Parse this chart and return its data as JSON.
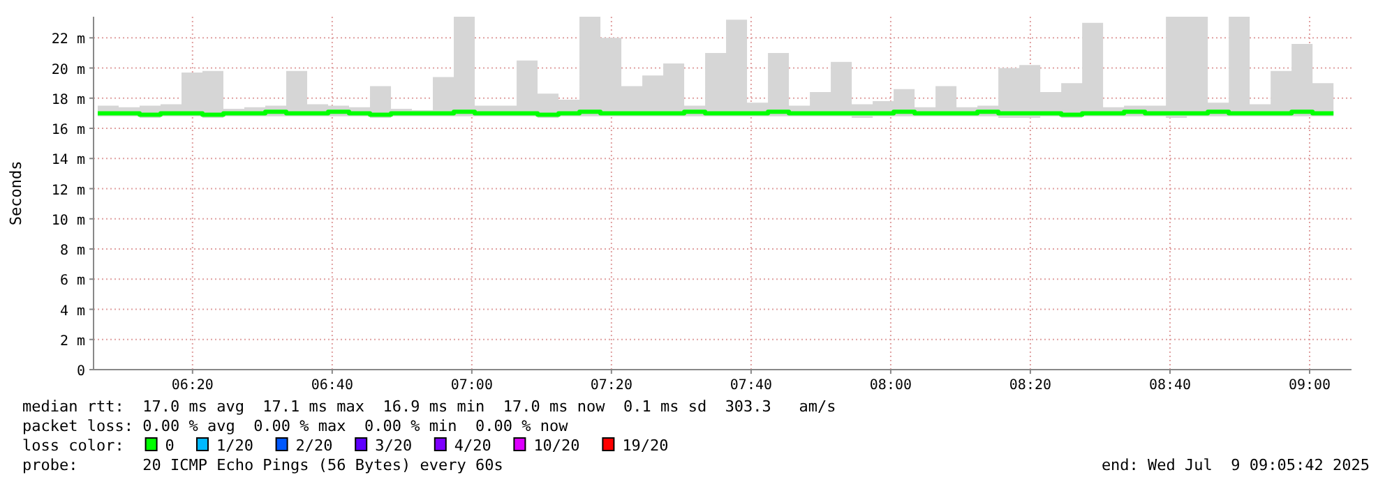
{
  "chart_data": {
    "type": "line",
    "ylabel": "Seconds",
    "legend_title": "loss color:",
    "legend": "bottom",
    "grid": true,
    "marker": "none",
    "line_style": "solid",
    "xlim": [
      6.097,
      9.1
    ],
    "ylim": [
      0,
      23.4
    ],
    "xticks": [
      {
        "value": 6.3333,
        "label": "06:20"
      },
      {
        "value": 6.6667,
        "label": "06:40"
      },
      {
        "value": 7,
        "label": "07:00"
      },
      {
        "value": 7.3333,
        "label": "07:20"
      },
      {
        "value": 7.6667,
        "label": "07:40"
      },
      {
        "value": 8,
        "label": "08:00"
      },
      {
        "value": 8.3333,
        "label": "08:20"
      },
      {
        "value": 8.6667,
        "label": "08:40"
      },
      {
        "value": 9,
        "label": "09:00"
      }
    ],
    "yticks": [
      0,
      {
        "value": 2,
        "label": "2 m"
      },
      {
        "value": 4,
        "label": "4 m"
      },
      {
        "value": 6,
        "label": "6 m"
      },
      {
        "value": 8,
        "label": "8 m"
      },
      {
        "value": 10,
        "label": "10 m"
      },
      {
        "value": 12,
        "label": "12 m"
      },
      {
        "value": 14,
        "label": "14 m"
      },
      {
        "value": 16,
        "label": "16 m"
      },
      {
        "value": 18,
        "label": "18 m"
      },
      {
        "value": 20,
        "label": "20 m"
      },
      {
        "value": 22,
        "label": "22 m"
      }
    ],
    "x": [
      6.107,
      6.157,
      6.207,
      6.257,
      6.307,
      6.357,
      6.407,
      6.457,
      6.507,
      6.557,
      6.607,
      6.657,
      6.707,
      6.757,
      6.807,
      6.857,
      6.907,
      6.957,
      7.007,
      7.057,
      7.107,
      7.157,
      7.207,
      7.257,
      7.307,
      7.357,
      7.407,
      7.457,
      7.507,
      7.557,
      7.607,
      7.657,
      7.707,
      7.757,
      7.807,
      7.857,
      7.907,
      7.957,
      8.007,
      8.057,
      8.107,
      8.157,
      8.207,
      8.257,
      8.307,
      8.357,
      8.407,
      8.457,
      8.507,
      8.557,
      8.607,
      8.657,
      8.707,
      8.757,
      8.807,
      8.857,
      8.907,
      8.957,
      9.007,
      9.057
    ],
    "series": [
      {
        "name": "0",
        "color": "#00ff00",
        "values": [
          17.0,
          17.0,
          16.9,
          17.0,
          17.0,
          16.9,
          17.0,
          17.0,
          17.1,
          17.0,
          17.0,
          17.1,
          17.0,
          16.9,
          17.0,
          17.0,
          17.0,
          17.1,
          17.0,
          17.0,
          17.0,
          16.9,
          17.0,
          17.1,
          17.0,
          17.0,
          17.0,
          17.0,
          17.1,
          17.0,
          17.0,
          17.0,
          17.1,
          17.0,
          17.0,
          17.0,
          17.0,
          17.0,
          17.1,
          17.0,
          17.0,
          17.0,
          17.1,
          17.0,
          17.0,
          17.0,
          16.9,
          17.0,
          17.0,
          17.1,
          17.0,
          17.0,
          17.0,
          17.1,
          17.0,
          17.0,
          17.0,
          17.1,
          17.0,
          17.0
        ],
        "lower": [
          16.8,
          16.8,
          16.7,
          16.8,
          16.8,
          16.7,
          16.8,
          16.8,
          16.8,
          16.8,
          16.8,
          16.8,
          16.8,
          16.7,
          16.8,
          16.8,
          16.8,
          16.8,
          16.8,
          16.8,
          16.8,
          16.7,
          16.8,
          16.8,
          16.8,
          16.8,
          16.8,
          16.8,
          16.8,
          16.8,
          16.8,
          16.8,
          16.8,
          16.8,
          16.8,
          16.8,
          16.7,
          16.8,
          16.8,
          16.8,
          16.8,
          16.8,
          16.8,
          16.7,
          16.7,
          16.8,
          16.7,
          16.8,
          16.8,
          16.8,
          16.8,
          16.7,
          16.8,
          16.8,
          16.8,
          16.8,
          16.8,
          16.8,
          16.8,
          16.8
        ],
        "upper": [
          17.5,
          17.4,
          17.5,
          17.6,
          19.7,
          19.8,
          17.3,
          17.4,
          17.5,
          19.8,
          17.6,
          17.5,
          17.4,
          18.8,
          17.3,
          17.2,
          19.4,
          23.4,
          17.5,
          17.5,
          20.5,
          18.3,
          17.9,
          23.4,
          22.0,
          18.8,
          19.5,
          20.3,
          17.5,
          21.0,
          23.2,
          17.7,
          21.0,
          17.5,
          18.4,
          20.4,
          17.6,
          17.8,
          18.6,
          17.4,
          18.8,
          17.4,
          17.5,
          20.0,
          20.2,
          18.4,
          19.0,
          23.0,
          17.4,
          17.5,
          17.5,
          23.4,
          23.4,
          17.7,
          23.4,
          17.6,
          19.8,
          21.6,
          19.0,
          17.5
        ]
      },
      {
        "name": "1/20",
        "color": "#00b8ff",
        "values": [
          null,
          null,
          null,
          null,
          null,
          null,
          null,
          null,
          null,
          null,
          null,
          null,
          null,
          null,
          null,
          null,
          null,
          null,
          null,
          null,
          null,
          null,
          null,
          null,
          null,
          null,
          null,
          null,
          null,
          null,
          null,
          null,
          null,
          null,
          null,
          null,
          null,
          null,
          null,
          null,
          null,
          null,
          null,
          null,
          null,
          null,
          null,
          null,
          null,
          null,
          null,
          null,
          null,
          null,
          null,
          null,
          null,
          null,
          null,
          null
        ]
      },
      {
        "name": "2/20",
        "color": "#0059ff",
        "values": [
          null,
          null,
          null,
          null,
          null,
          null,
          null,
          null,
          null,
          null,
          null,
          null,
          null,
          null,
          null,
          null,
          null,
          null,
          null,
          null,
          null,
          null,
          null,
          null,
          null,
          null,
          null,
          null,
          null,
          null,
          null,
          null,
          null,
          null,
          null,
          null,
          null,
          null,
          null,
          null,
          null,
          null,
          null,
          null,
          null,
          null,
          null,
          null,
          null,
          null,
          null,
          null,
          null,
          null,
          null,
          null,
          null,
          null,
          null,
          null
        ]
      },
      {
        "name": "3/20",
        "color": "#5e00ff",
        "values": [
          null,
          null,
          null,
          null,
          null,
          null,
          null,
          null,
          null,
          null,
          null,
          null,
          null,
          null,
          null,
          null,
          null,
          null,
          null,
          null,
          null,
          null,
          null,
          null,
          null,
          null,
          null,
          null,
          null,
          null,
          null,
          null,
          null,
          null,
          null,
          null,
          null,
          null,
          null,
          null,
          null,
          null,
          null,
          null,
          null,
          null,
          null,
          null,
          null,
          null,
          null,
          null,
          null,
          null,
          null,
          null,
          null,
          null,
          null,
          null
        ]
      },
      {
        "name": "4/20",
        "color": "#7e00ff",
        "values": [
          null,
          null,
          null,
          null,
          null,
          null,
          null,
          null,
          null,
          null,
          null,
          null,
          null,
          null,
          null,
          null,
          null,
          null,
          null,
          null,
          null,
          null,
          null,
          null,
          null,
          null,
          null,
          null,
          null,
          null,
          null,
          null,
          null,
          null,
          null,
          null,
          null,
          null,
          null,
          null,
          null,
          null,
          null,
          null,
          null,
          null,
          null,
          null,
          null,
          null,
          null,
          null,
          null,
          null,
          null,
          null,
          null,
          null,
          null,
          null
        ]
      },
      {
        "name": "10/20",
        "color": "#dd00ff",
        "values": [
          null,
          null,
          null,
          null,
          null,
          null,
          null,
          null,
          null,
          null,
          null,
          null,
          null,
          null,
          null,
          null,
          null,
          null,
          null,
          null,
          null,
          null,
          null,
          null,
          null,
          null,
          null,
          null,
          null,
          null,
          null,
          null,
          null,
          null,
          null,
          null,
          null,
          null,
          null,
          null,
          null,
          null,
          null,
          null,
          null,
          null,
          null,
          null,
          null,
          null,
          null,
          null,
          null,
          null,
          null,
          null,
          null,
          null,
          null,
          null
        ]
      },
      {
        "name": "19/20",
        "color": "#ff0000",
        "values": [
          null,
          null,
          null,
          null,
          null,
          null,
          null,
          null,
          null,
          null,
          null,
          null,
          null,
          null,
          null,
          null,
          null,
          null,
          null,
          null,
          null,
          null,
          null,
          null,
          null,
          null,
          null,
          null,
          null,
          null,
          null,
          null,
          null,
          null,
          null,
          null,
          null,
          null,
          null,
          null,
          null,
          null,
          null,
          null,
          null,
          null,
          null,
          null,
          null,
          null,
          null,
          null,
          null,
          null,
          null,
          null,
          null,
          null,
          null,
          null
        ]
      }
    ],
    "annotations": [
      "median rtt:  17.0 ms avg  17.1 ms max  16.9 ms min  17.0 ms now  0.1 ms sd  303.3   am/s",
      "packet loss: 0.00 % avg  0.00 % max  0.00 % min  0.00 % now",
      "probe:       20 ICMP Echo Pings (56 Bytes) every 60s",
      "end: Wed Jul  9 09:05:42 2025"
    ]
  }
}
